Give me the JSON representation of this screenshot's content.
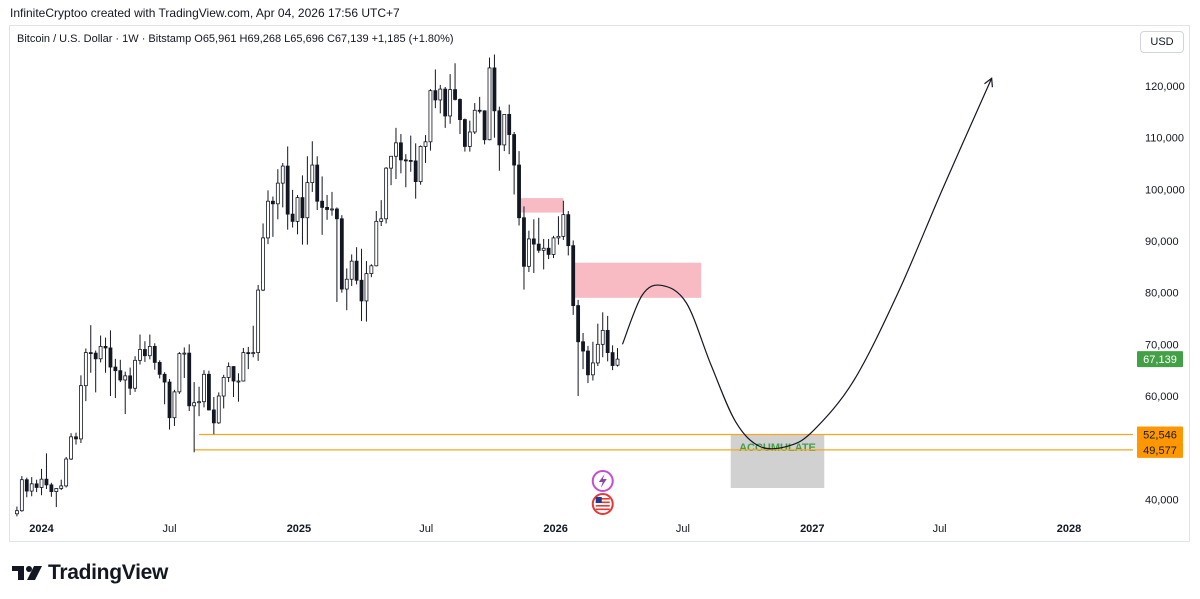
{
  "header": {
    "credit": "InfiniteCryptoo created with TradingView.com, Apr 04, 2026 17:56 UTC+7"
  },
  "symbol": {
    "line": "Bitcoin / U.S. Dollar · 1W · Bitstamp  O65,961  H69,268  L65,696  C67,139  +1,185 (+1.80%)"
  },
  "currency_label": "USD",
  "footer": {
    "brand": "TradingView"
  },
  "colors": {
    "up": "#131722",
    "down": "#131722",
    "supply_zone": "#f8bbc4",
    "accumulate_zone": "#d1d1d1",
    "support_line": "#f5a623",
    "price_label_bg": "#43a047",
    "support_label_bg": "#ff9800",
    "accumulate_text": "#43a047"
  },
  "icons": [
    "tradingview-logo-icon",
    "flash-badge-icon",
    "us-flag-badge-icon",
    "projection-arrow-icon"
  ],
  "chart_data": {
    "type": "candlestick",
    "timeframe": "1W",
    "title": "Bitcoin / U.S. Dollar · 1W · Bitstamp",
    "ohlc_last": {
      "open": 65961,
      "high": 69268,
      "low": 65696,
      "close": 67139,
      "change": "+1,185 (+1.80%)"
    },
    "y_range": [
      36000,
      126000
    ],
    "x_range": [
      "2023-11-20",
      "2028-04-01"
    ],
    "y_ticks": [
      40000,
      50000,
      60000,
      70000,
      80000,
      90000,
      100000,
      110000,
      120000
    ],
    "y_tick_labels": [
      "40,000",
      "50,000",
      "60,000",
      "70,000",
      "80,000",
      "90,000",
      "100,000",
      "110,000",
      "120,000"
    ],
    "x_ticks": [
      {
        "date": "2024-01-01",
        "label": "2024",
        "bold": true
      },
      {
        "date": "2024-07-01",
        "label": "Jul",
        "bold": false
      },
      {
        "date": "2025-01-01",
        "label": "2025",
        "bold": true
      },
      {
        "date": "2025-07-01",
        "label": "Jul",
        "bold": false
      },
      {
        "date": "2026-01-01",
        "label": "2026",
        "bold": true
      },
      {
        "date": "2026-07-01",
        "label": "Jul",
        "bold": false
      },
      {
        "date": "2027-01-01",
        "label": "2027",
        "bold": true
      },
      {
        "date": "2027-07-01",
        "label": "Jul",
        "bold": false
      },
      {
        "date": "2028-01-01",
        "label": "2028",
        "bold": true
      }
    ],
    "candles": [
      [
        "2023-11-27",
        37200,
        38600,
        36700,
        37800
      ],
      [
        "2023-12-04",
        37800,
        44500,
        37600,
        43800
      ],
      [
        "2023-12-11",
        43800,
        44200,
        40400,
        41600
      ],
      [
        "2023-12-18",
        41600,
        44300,
        40600,
        43000
      ],
      [
        "2023-12-25",
        43000,
        43800,
        41400,
        42300
      ],
      [
        "2024-01-01",
        42300,
        45900,
        40800,
        43900
      ],
      [
        "2024-01-08",
        43900,
        48900,
        42000,
        42800
      ],
      [
        "2024-01-15",
        42800,
        43200,
        40500,
        41500
      ],
      [
        "2024-01-22",
        41500,
        42200,
        38500,
        42100
      ],
      [
        "2024-01-29",
        42100,
        43800,
        41800,
        42600
      ],
      [
        "2024-02-05",
        42600,
        48200,
        42300,
        47800
      ],
      [
        "2024-02-12",
        47800,
        52800,
        47600,
        52100
      ],
      [
        "2024-02-19",
        52100,
        52900,
        50600,
        51700
      ],
      [
        "2024-02-26",
        51700,
        64000,
        50900,
        62000
      ],
      [
        "2024-03-04",
        62000,
        69200,
        59000,
        68400
      ],
      [
        "2024-03-11",
        68400,
        73700,
        64500,
        68300
      ],
      [
        "2024-03-18",
        68300,
        68800,
        60700,
        67200
      ],
      [
        "2024-03-25",
        67200,
        71700,
        66500,
        69600
      ],
      [
        "2024-04-01",
        69600,
        71300,
        64500,
        69300
      ],
      [
        "2024-04-08",
        69300,
        72700,
        60000,
        65600
      ],
      [
        "2024-04-15",
        65600,
        67200,
        59600,
        64900
      ],
      [
        "2024-04-22",
        64900,
        67000,
        62700,
        63100
      ],
      [
        "2024-04-29",
        63100,
        64700,
        56500,
        63900
      ],
      [
        "2024-05-06",
        63900,
        65500,
        60200,
        61500
      ],
      [
        "2024-05-13",
        61500,
        67700,
        60800,
        66900
      ],
      [
        "2024-05-20",
        66900,
        71900,
        66100,
        69000
      ],
      [
        "2024-05-27",
        69000,
        70600,
        66600,
        67800
      ],
      [
        "2024-06-03",
        67800,
        71900,
        67100,
        69600
      ],
      [
        "2024-06-10",
        69600,
        70200,
        65100,
        66500
      ],
      [
        "2024-06-17",
        66500,
        66900,
        63400,
        64200
      ],
      [
        "2024-06-24",
        64200,
        64600,
        58400,
        62700
      ],
      [
        "2024-07-01",
        62700,
        63300,
        53500,
        55800
      ],
      [
        "2024-07-08",
        55800,
        61200,
        54200,
        60800
      ],
      [
        "2024-07-15",
        60800,
        68500,
        60400,
        68200
      ],
      [
        "2024-07-22",
        68200,
        69400,
        63500,
        68300
      ],
      [
        "2024-07-29",
        68300,
        70000,
        57100,
        58100
      ],
      [
        "2024-08-05",
        58100,
        62700,
        49100,
        58700
      ],
      [
        "2024-08-12",
        58700,
        61800,
        56100,
        58900
      ],
      [
        "2024-08-19",
        58900,
        65000,
        57800,
        64200
      ],
      [
        "2024-08-26",
        64200,
        64900,
        57200,
        57300
      ],
      [
        "2024-09-02",
        57300,
        59800,
        52600,
        54800
      ],
      [
        "2024-09-09",
        54800,
        60700,
        54600,
        60000
      ],
      [
        "2024-09-16",
        60000,
        64100,
        57600,
        63600
      ],
      [
        "2024-09-23",
        63600,
        66500,
        62700,
        65700
      ],
      [
        "2024-09-30",
        65700,
        65800,
        59800,
        62900
      ],
      [
        "2024-10-07",
        62900,
        64400,
        58900,
        62900
      ],
      [
        "2024-10-14",
        62900,
        69300,
        62800,
        68400
      ],
      [
        "2024-10-21",
        68400,
        69500,
        65200,
        68200
      ],
      [
        "2024-10-28",
        68200,
        73600,
        67500,
        68400
      ],
      [
        "2024-11-04",
        68400,
        81500,
        66800,
        80500
      ],
      [
        "2024-11-11",
        80500,
        93400,
        80300,
        90600
      ],
      [
        "2024-11-18",
        90600,
        99800,
        89400,
        97700
      ],
      [
        "2024-11-25",
        97700,
        98600,
        90800,
        97200
      ],
      [
        "2024-12-02",
        97200,
        103900,
        94200,
        101200
      ],
      [
        "2024-12-09",
        101200,
        105100,
        96500,
        104500
      ],
      [
        "2024-12-16",
        104500,
        108300,
        92200,
        95200
      ],
      [
        "2024-12-23",
        95200,
        99900,
        92600,
        93800
      ],
      [
        "2024-12-30",
        93800,
        98900,
        91300,
        98400
      ],
      [
        "2025-01-06",
        98400,
        102700,
        89300,
        94500
      ],
      [
        "2025-01-13",
        94500,
        106400,
        89300,
        101300
      ],
      [
        "2025-01-20",
        101300,
        109300,
        99500,
        104700
      ],
      [
        "2025-01-27",
        104700,
        106400,
        96000,
        97700
      ],
      [
        "2025-02-03",
        97700,
        102500,
        91200,
        96500
      ],
      [
        "2025-02-10",
        96500,
        98900,
        94100,
        96100
      ],
      [
        "2025-02-17",
        96100,
        99500,
        94900,
        96200
      ],
      [
        "2025-02-24",
        96200,
        96500,
        78200,
        94300
      ],
      [
        "2025-03-03",
        94300,
        95000,
        80000,
        80700
      ],
      [
        "2025-03-10",
        80700,
        84700,
        76600,
        82600
      ],
      [
        "2025-03-17",
        82600,
        87400,
        81300,
        86100
      ],
      [
        "2025-03-24",
        86100,
        88800,
        81600,
        82400
      ],
      [
        "2025-03-31",
        82400,
        88500,
        74500,
        78400
      ],
      [
        "2025-04-07",
        78400,
        86100,
        74400,
        83700
      ],
      [
        "2025-04-14",
        83700,
        85500,
        83000,
        85200
      ],
      [
        "2025-04-21",
        85200,
        95800,
        85100,
        93800
      ],
      [
        "2025-04-28",
        93800,
        97900,
        92900,
        94300
      ],
      [
        "2025-05-05",
        94300,
        104300,
        93400,
        104100
      ],
      [
        "2025-05-12",
        104100,
        105800,
        100800,
        106400
      ],
      [
        "2025-05-19",
        106400,
        111900,
        102000,
        109000
      ],
      [
        "2025-05-26",
        109000,
        110700,
        103100,
        105700
      ],
      [
        "2025-06-02",
        105700,
        106800,
        100400,
        105600
      ],
      [
        "2025-06-09",
        105600,
        110400,
        103400,
        105500
      ],
      [
        "2025-06-16",
        105500,
        108900,
        98200,
        101500
      ],
      [
        "2025-06-23",
        101500,
        108500,
        100900,
        108300
      ],
      [
        "2025-06-30",
        108300,
        110500,
        105100,
        109200
      ],
      [
        "2025-07-07",
        109200,
        119400,
        107500,
        119100
      ],
      [
        "2025-07-14",
        119100,
        123200,
        115700,
        117300
      ],
      [
        "2025-07-21",
        117300,
        120200,
        114700,
        119400
      ],
      [
        "2025-07-28",
        119400,
        119800,
        111900,
        114200
      ],
      [
        "2025-08-04",
        114200,
        122300,
        112700,
        119300
      ],
      [
        "2025-08-11",
        119300,
        124400,
        117200,
        117400
      ],
      [
        "2025-08-18",
        117400,
        117600,
        110700,
        113500
      ],
      [
        "2025-08-25",
        113500,
        113700,
        107300,
        108300
      ],
      [
        "2025-09-01",
        108300,
        113300,
        107300,
        111100
      ],
      [
        "2025-09-08",
        111100,
        116700,
        110700,
        115300
      ],
      [
        "2025-09-15",
        115300,
        117900,
        114700,
        115200
      ],
      [
        "2025-09-22",
        115200,
        115300,
        108700,
        109600
      ],
      [
        "2025-09-29",
        109600,
        125500,
        109500,
        123500
      ],
      [
        "2025-10-06",
        123500,
        126100,
        110000,
        115200
      ],
      [
        "2025-10-13",
        115200,
        116000,
        103600,
        108600
      ],
      [
        "2025-10-20",
        108600,
        114000,
        107400,
        114500
      ],
      [
        "2025-10-27",
        114500,
        116400,
        106800,
        110600
      ],
      [
        "2025-11-03",
        110600,
        111100,
        99000,
        104700
      ],
      [
        "2025-11-10",
        104700,
        107400,
        93000,
        94500
      ],
      [
        "2025-11-17",
        94500,
        96700,
        80600,
        85100
      ],
      [
        "2025-11-24",
        85100,
        92000,
        84000,
        90400
      ],
      [
        "2025-12-01",
        90400,
        94200,
        83800,
        89400
      ],
      [
        "2025-12-08",
        89400,
        94500,
        87700,
        88200
      ],
      [
        "2025-12-15",
        88200,
        90400,
        84500,
        88600
      ],
      [
        "2025-12-22",
        88600,
        90400,
        86500,
        87400
      ],
      [
        "2025-12-29",
        87400,
        91000,
        86700,
        90600
      ],
      [
        "2026-01-05",
        90600,
        94800,
        89300,
        90900
      ],
      [
        "2026-01-12",
        90900,
        97800,
        90200,
        95100
      ],
      [
        "2026-01-19",
        95100,
        95800,
        87200,
        89100
      ],
      [
        "2026-01-26",
        89100,
        90100,
        75700,
        77500
      ],
      [
        "2026-02-02",
        77500,
        78600,
        60000,
        70500
      ],
      [
        "2026-02-09",
        70500,
        72200,
        65200,
        68700
      ],
      [
        "2026-02-16",
        68700,
        69700,
        62500,
        64100
      ],
      [
        "2026-02-23",
        64100,
        70500,
        63000,
        66400
      ],
      [
        "2026-03-02",
        66400,
        74000,
        65800,
        70000
      ],
      [
        "2026-03-09",
        70000,
        76200,
        67500,
        72700
      ],
      [
        "2026-03-16",
        72700,
        75500,
        66700,
        68400
      ],
      [
        "2026-03-23",
        68400,
        69800,
        65000,
        65900
      ],
      [
        "2026-03-30",
        65961,
        69268,
        65696,
        67139
      ]
    ],
    "zones": [
      {
        "kind": "supply",
        "x0": "2025-11-10",
        "x1": "2026-01-12",
        "y0": 95500,
        "y1": 98300
      },
      {
        "kind": "supply",
        "x0": "2026-01-26",
        "x1": "2026-07-27",
        "y0": 79000,
        "y1": 85800
      },
      {
        "kind": "accumulate",
        "x0": "2026-09-07",
        "x1": "2027-01-18",
        "y0": 42200,
        "y1": 52600,
        "label": "ACCUMULATE"
      }
    ],
    "support_levels": [
      {
        "price": 52546,
        "label": "52,546",
        "from": "2024-08-12"
      },
      {
        "price": 49577,
        "label": "49,577",
        "from": "2024-08-05"
      }
    ],
    "projection_path": [
      [
        "2026-04-06",
        70000
      ],
      [
        "2026-05-04",
        79500
      ],
      [
        "2026-06-01",
        81400
      ],
      [
        "2026-07-06",
        78000
      ],
      [
        "2026-08-10",
        66000
      ],
      [
        "2026-09-14",
        55000
      ],
      [
        "2026-10-19",
        50200
      ],
      [
        "2026-11-30",
        50400
      ],
      [
        "2027-01-04",
        53500
      ],
      [
        "2027-03-01",
        63000
      ],
      [
        "2027-05-03",
        80000
      ],
      [
        "2027-07-05",
        100000
      ],
      [
        "2027-09-13",
        121500
      ]
    ],
    "current_price": {
      "value": 67139,
      "label": "67,139"
    },
    "grid": false,
    "legend": "none"
  }
}
